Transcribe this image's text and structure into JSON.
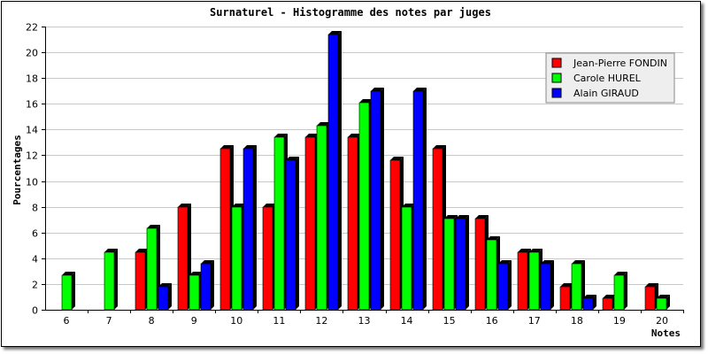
{
  "chart_data": {
    "type": "bar",
    "title": "Surnaturel - Histogramme des notes par juges",
    "xlabel": "Notes",
    "ylabel": "Pourcentages",
    "categories": [
      "6",
      "7",
      "8",
      "9",
      "10",
      "11",
      "12",
      "13",
      "14",
      "15",
      "16",
      "17",
      "18",
      "19",
      "20"
    ],
    "ylim": [
      0,
      22
    ],
    "yticks": [
      0,
      2,
      4,
      6,
      8,
      10,
      12,
      14,
      16,
      18,
      20,
      22
    ],
    "grid": true,
    "legend_position": "top-right",
    "series": [
      {
        "name": "Jean-Pierre FONDIN",
        "color": "#ff0000",
        "values": [
          0,
          0,
          4.5,
          8,
          12.5,
          8,
          13.4,
          13.4,
          11.6,
          12.5,
          7.1,
          4.5,
          1.8,
          0.9,
          1.8
        ]
      },
      {
        "name": "Carole HUREL",
        "color": "#00ff00",
        "values": [
          2.7,
          4.5,
          6.3,
          2.7,
          8,
          13.4,
          14.3,
          16.1,
          8,
          7.1,
          5.4,
          4.5,
          3.6,
          2.7,
          0.9
        ]
      },
      {
        "name": "Alain GIRAUD",
        "color": "#0000ff",
        "values": [
          0,
          0,
          1.8,
          3.6,
          12.5,
          11.6,
          21.4,
          17,
          17,
          7.1,
          3.6,
          3.6,
          0.9,
          0,
          0
        ]
      }
    ]
  }
}
